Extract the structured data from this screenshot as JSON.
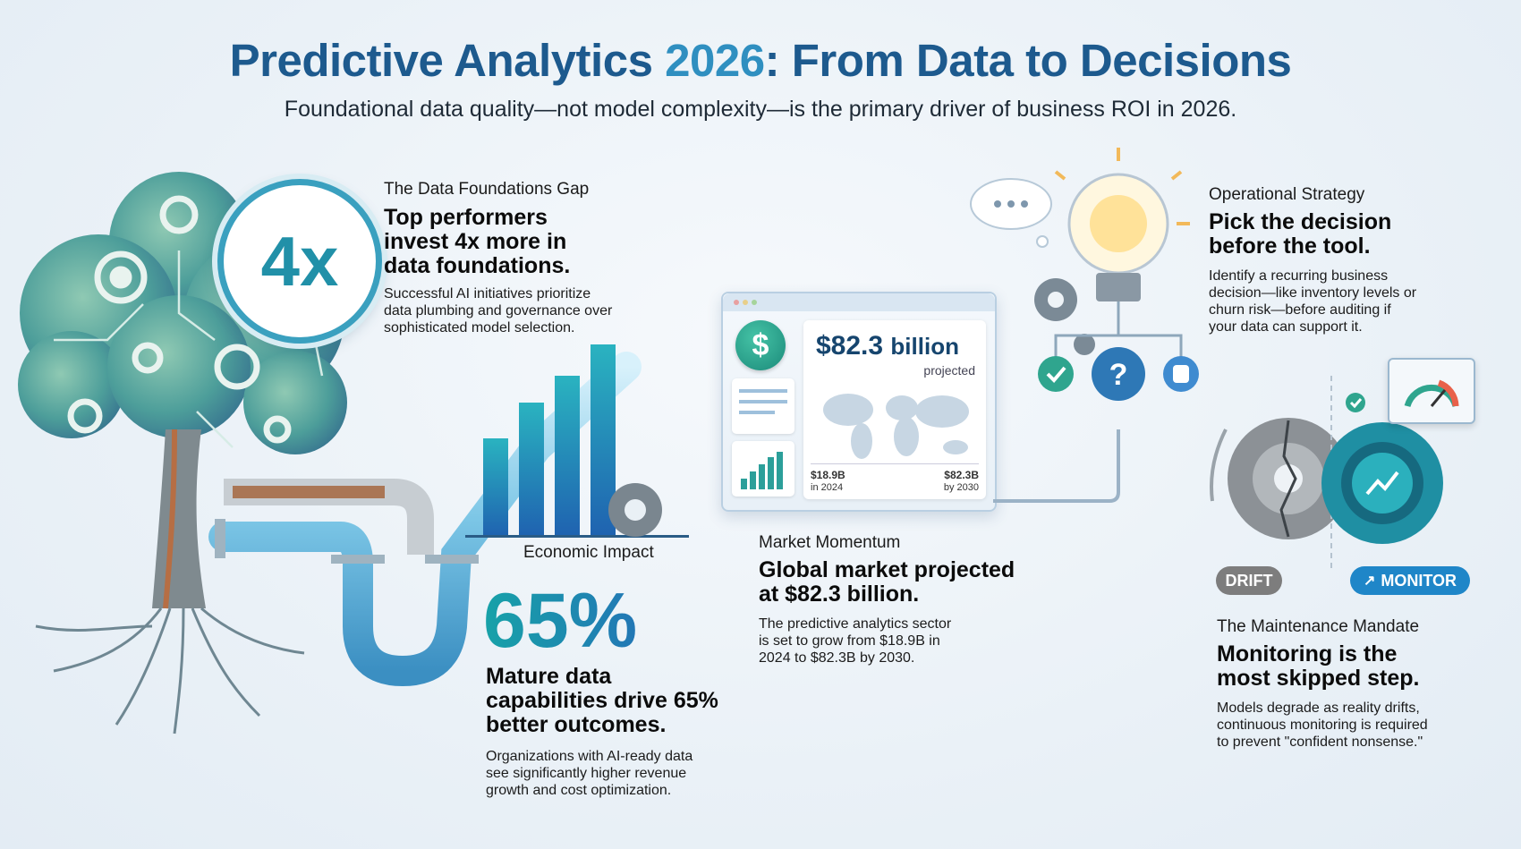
{
  "header": {
    "title_part1": "Predictive Analytics ",
    "title_part2": "2026",
    "title_part3": ": From Data to Decisions",
    "subtitle": "Foundational data quality—not model complexity—is the primary driver of business ROI in 2026."
  },
  "foundations": {
    "eyebrow": "The Data Foundations Gap",
    "stat": "4x",
    "headline_lines": [
      "Top performers",
      "invest 4x more in",
      "data foundations."
    ],
    "body_lines": [
      "Successful AI initiatives prioritize",
      "data plumbing and governance over",
      "sophisticated model selection."
    ]
  },
  "economic": {
    "eyebrow": "Economic Impact",
    "stat": "65%",
    "headline_lines": [
      "Mature data",
      "capabilities drive 65%",
      "better outcomes."
    ],
    "body_lines": [
      "Organizations with AI-ready data",
      "see significantly higher revenue",
      "growth and cost optimization."
    ]
  },
  "market": {
    "eyebrow": "Market Momentum",
    "headline_lines": [
      "Global market projected",
      "at $82.3 billion."
    ],
    "body_lines": [
      "The predictive analytics sector",
      "is set to grow from $18.9B in",
      "2024 to $82.3B by 2030."
    ],
    "dashboard": {
      "currency_symbol": "$",
      "amount": "$82.3",
      "unit": "billion",
      "projected": "projected",
      "start_value": "$18.9B",
      "start_label": "in 2024",
      "end_value": "$82.3B",
      "end_label": "by 2030"
    }
  },
  "strategy": {
    "eyebrow": "Operational Strategy",
    "headline_lines": [
      "Pick the decision",
      "before the tool."
    ],
    "body_lines": [
      "Identify a recurring business",
      "decision—like inventory levels or",
      "churn risk—before auditing if",
      "your data can support it."
    ],
    "question_mark": "?"
  },
  "maintenance": {
    "eyebrow": "The Maintenance Mandate",
    "headline_lines": [
      "Monitoring is the",
      "most skipped step."
    ],
    "body_lines": [
      "Models degrade as reality drifts,",
      "continuous monitoring is required",
      "to prevent \"confident nonsense.\""
    ],
    "drift_label": "DRIFT",
    "monitor_label": "MONITOR"
  },
  "colors": {
    "title_dark": "#1d5a8e",
    "title_accent": "#2f8fc0",
    "teal": "#1f9aa5",
    "drift_badge": "#7d7d7d",
    "monitor_badge": "#1f86c8"
  }
}
